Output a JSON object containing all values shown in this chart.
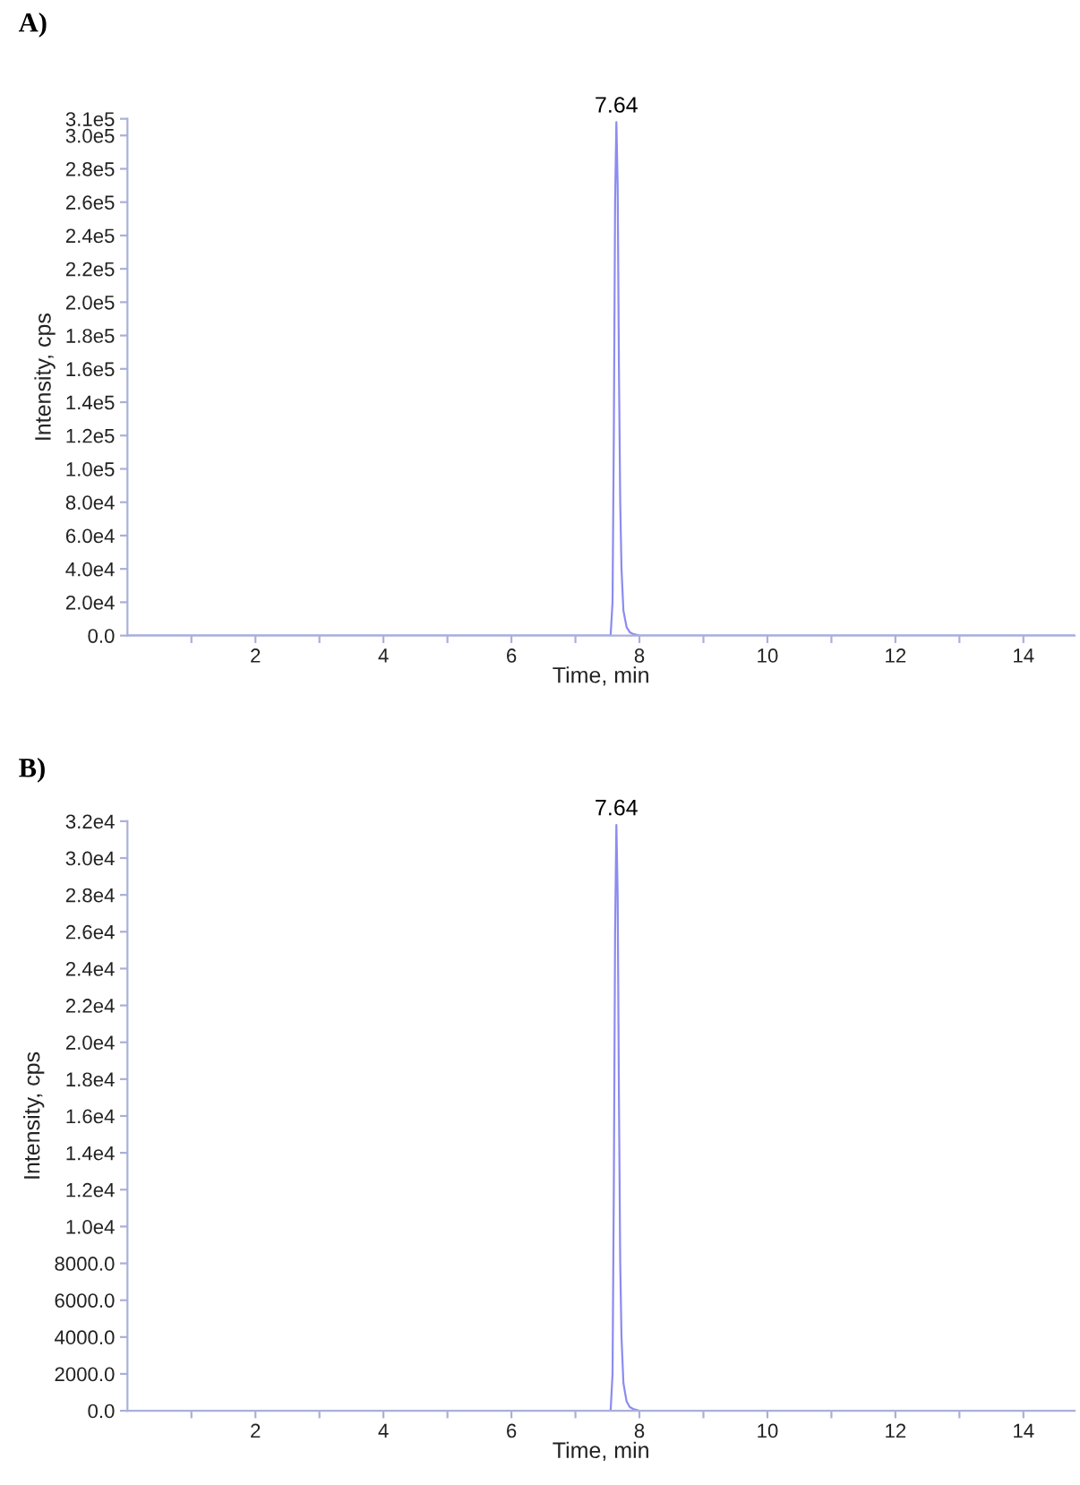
{
  "chart_data": [
    {
      "type": "line",
      "title": "A)",
      "xlabel": "Time, min",
      "ylabel": "Intensity, cps",
      "series": [
        {
          "color": "#8c8cf0",
          "x": [
            0,
            7.0,
            7.55,
            7.58,
            7.6,
            7.62,
            7.64,
            7.66,
            7.68,
            7.7,
            7.72,
            7.75,
            7.8,
            7.85,
            7.9,
            8.0,
            14.8
          ],
          "values": [
            0,
            0,
            0,
            20000,
            120000,
            260000,
            308000,
            270000,
            160000,
            80000,
            40000,
            15000,
            5000,
            2000,
            1000,
            0,
            0
          ]
        }
      ],
      "annotations": [
        {
          "text": "7.64",
          "x": 7.64,
          "y": 308000
        }
      ],
      "xlim": [
        0,
        14.8
      ],
      "xticks": [
        {
          "value": 1,
          "label": null
        },
        2,
        {
          "value": 3,
          "label": null
        },
        4,
        {
          "value": 5,
          "label": null
        },
        6,
        {
          "value": 7,
          "label": null
        },
        8,
        {
          "value": 9,
          "label": null
        },
        10,
        {
          "value": 11,
          "label": null
        },
        12,
        {
          "value": 13,
          "label": null
        },
        14
      ],
      "ylim": [
        0,
        310000
      ],
      "yticks": [
        {
          "value": 0,
          "label": "0.0"
        },
        {
          "value": 20000,
          "label": "2.0e4"
        },
        {
          "value": 40000,
          "label": "4.0e4"
        },
        {
          "value": 60000,
          "label": "6.0e4"
        },
        {
          "value": 80000,
          "label": "8.0e4"
        },
        {
          "value": 100000,
          "label": "1.0e5"
        },
        {
          "value": 120000,
          "label": "1.2e5"
        },
        {
          "value": 140000,
          "label": "1.4e5"
        },
        {
          "value": 160000,
          "label": "1.6e5"
        },
        {
          "value": 180000,
          "label": "1.8e5"
        },
        {
          "value": 200000,
          "label": "2.0e5"
        },
        {
          "value": 220000,
          "label": "2.2e5"
        },
        {
          "value": 240000,
          "label": "2.4e5"
        },
        {
          "value": 260000,
          "label": "2.6e5"
        },
        {
          "value": 280000,
          "label": "2.8e5"
        },
        {
          "value": 300000,
          "label": "3.0e5"
        },
        {
          "value": 310000,
          "label": "3.1e5"
        }
      ],
      "grid": false,
      "legend": false
    },
    {
      "type": "line",
      "title": "B)",
      "xlabel": "Time, min",
      "ylabel": "Intensity, cps",
      "series": [
        {
          "color": "#8c8cf0",
          "x": [
            0,
            7.0,
            7.55,
            7.58,
            7.6,
            7.62,
            7.64,
            7.66,
            7.68,
            7.7,
            7.72,
            7.75,
            7.8,
            7.85,
            7.9,
            8.0,
            14.8
          ],
          "values": [
            0,
            0,
            0,
            2000,
            12000,
            26000,
            31800,
            28000,
            17000,
            8000,
            4000,
            1500,
            500,
            200,
            100,
            0,
            0
          ]
        }
      ],
      "annotations": [
        {
          "text": "7.64",
          "x": 7.64,
          "y": 31800
        }
      ],
      "xlim": [
        0,
        14.8
      ],
      "xticks": [
        {
          "value": 1,
          "label": null
        },
        2,
        {
          "value": 3,
          "label": null
        },
        4,
        {
          "value": 5,
          "label": null
        },
        6,
        {
          "value": 7,
          "label": null
        },
        8,
        {
          "value": 9,
          "label": null
        },
        10,
        {
          "value": 11,
          "label": null
        },
        12,
        {
          "value": 13,
          "label": null
        },
        14
      ],
      "ylim": [
        0,
        32000
      ],
      "yticks": [
        {
          "value": 0,
          "label": "0.0"
        },
        {
          "value": 2000,
          "label": "2000.0"
        },
        {
          "value": 4000,
          "label": "4000.0"
        },
        {
          "value": 6000,
          "label": "6000.0"
        },
        {
          "value": 8000,
          "label": "8000.0"
        },
        {
          "value": 10000,
          "label": "1.0e4"
        },
        {
          "value": 12000,
          "label": "1.2e4"
        },
        {
          "value": 14000,
          "label": "1.4e4"
        },
        {
          "value": 16000,
          "label": "1.6e4"
        },
        {
          "value": 18000,
          "label": "1.8e4"
        },
        {
          "value": 20000,
          "label": "2.0e4"
        },
        {
          "value": 22000,
          "label": "2.2e4"
        },
        {
          "value": 24000,
          "label": "2.4e4"
        },
        {
          "value": 26000,
          "label": "2.6e4"
        },
        {
          "value": 28000,
          "label": "2.8e4"
        },
        {
          "value": 30000,
          "label": "3.0e4"
        },
        {
          "value": 32000,
          "label": "3.2e4"
        }
      ],
      "grid": false,
      "legend": false
    }
  ]
}
